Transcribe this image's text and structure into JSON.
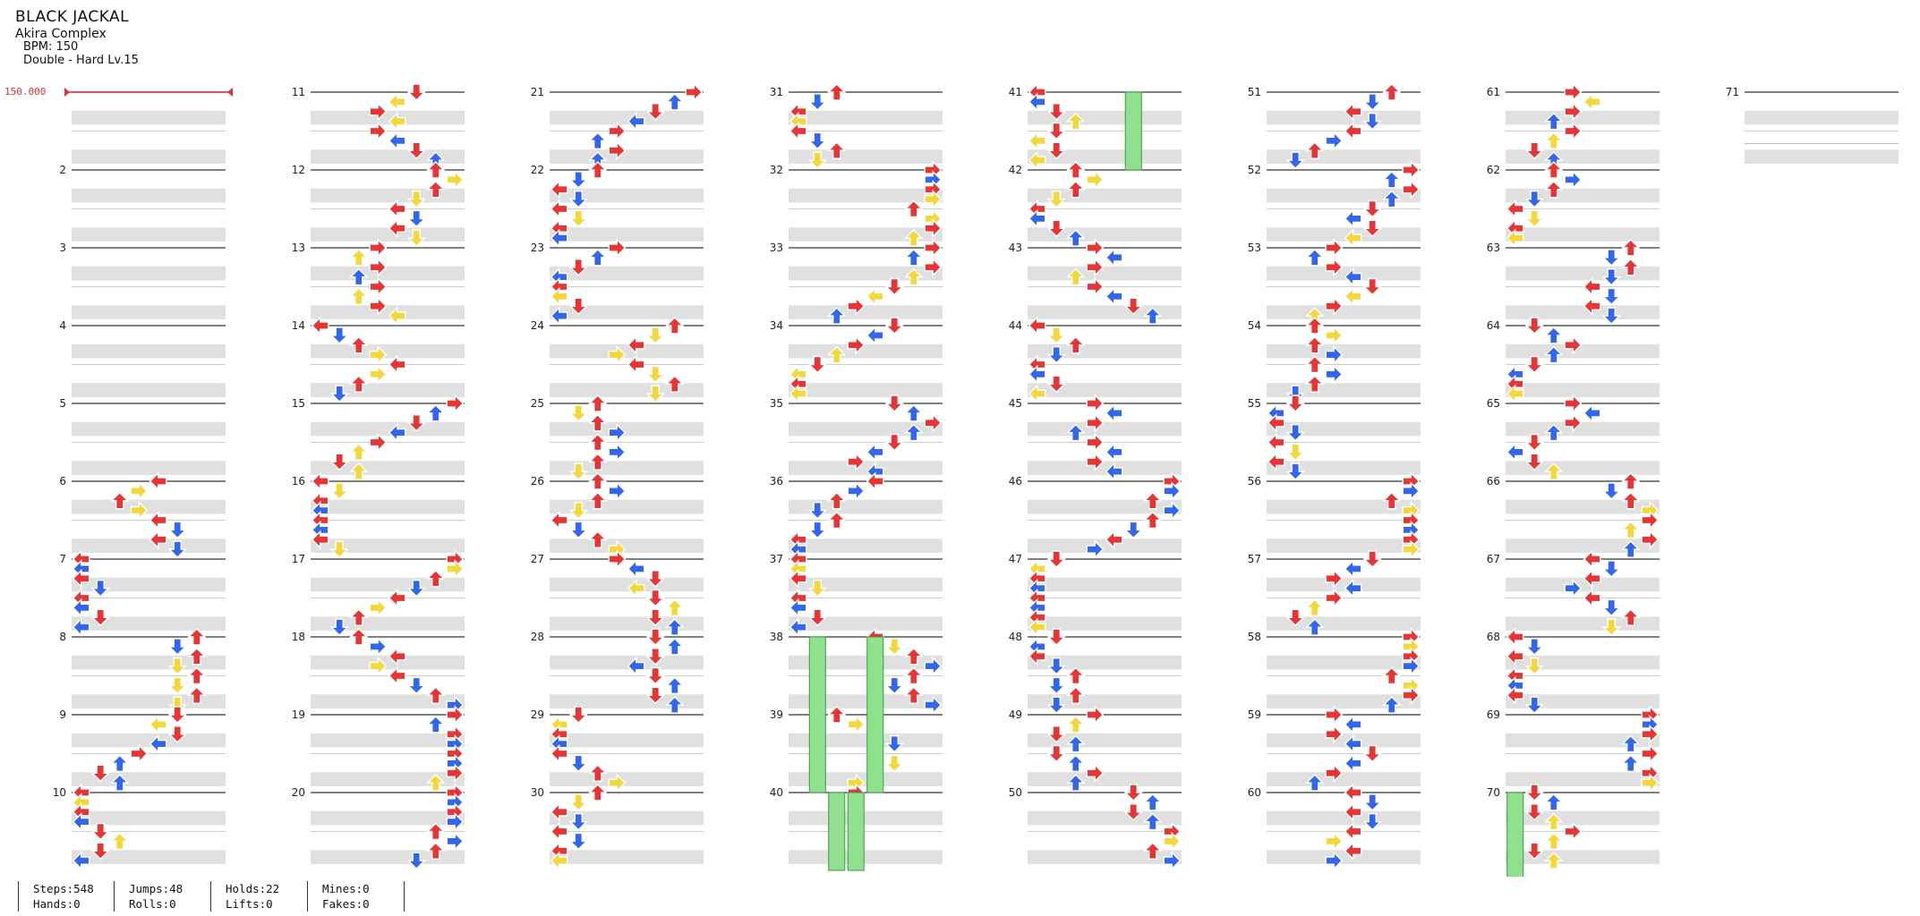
{
  "song": {
    "title": "BLACK JACKAL",
    "artist": "Akira Complex",
    "bpm_text": "BPM: 150",
    "difficulty_text": "Double - Hard  Lv.15"
  },
  "bpm_change_label": "150.000",
  "measure_labels": [
    "2",
    "3",
    "4",
    "5",
    "6",
    "7",
    "8",
    "9",
    "10",
    "11",
    "12",
    "13",
    "14",
    "15",
    "16",
    "17",
    "18",
    "19",
    "20",
    "21",
    "22",
    "23",
    "24",
    "25",
    "26",
    "27",
    "28",
    "29",
    "30",
    "31",
    "32",
    "33",
    "34",
    "35",
    "36",
    "37",
    "38",
    "39",
    "40",
    "41",
    "42",
    "43",
    "44",
    "45",
    "46",
    "47",
    "48",
    "49",
    "50",
    "51",
    "52",
    "53",
    "54",
    "55",
    "56",
    "57",
    "58",
    "59",
    "60",
    "61",
    "62",
    "63",
    "64",
    "65",
    "66",
    "67",
    "68",
    "69",
    "70",
    "71"
  ],
  "colors": {
    "red": "#e83434",
    "blue": "#3366ee",
    "yellow": "#f2d83a",
    "hold": "#8fe08f",
    "band": "#e0e0e0",
    "bpm_line": "#e23030"
  },
  "stats": {
    "steps": "Steps:548",
    "hands": "Hands:0",
    "jumps": "Jumps:48",
    "rolls": "Rolls:0",
    "holds": "Holds:22",
    "lifts": "Lifts:0",
    "mines": "Mines:0",
    "fakes": "Fakes:0"
  }
}
